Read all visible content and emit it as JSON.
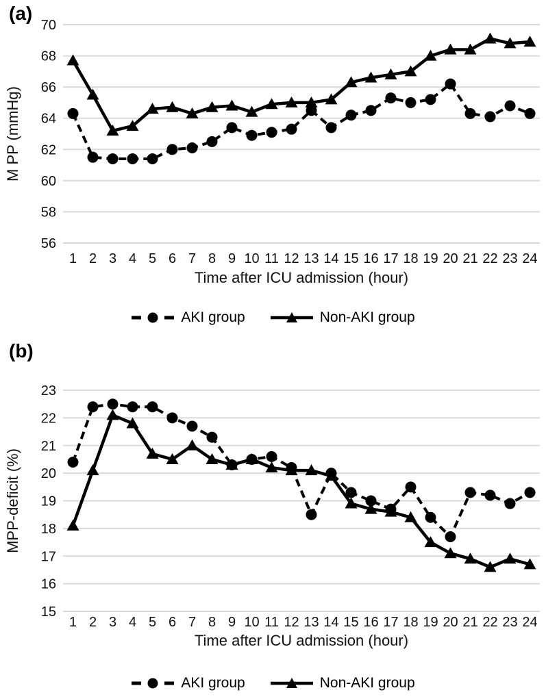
{
  "figure": {
    "panel_a": {
      "label": "(a)"
    },
    "panel_b": {
      "label": "(b)"
    },
    "legend": {
      "aki": "AKI group",
      "non_aki": "Non-AKI group"
    },
    "colors": {
      "series": "#000000",
      "gridline": "#dadada",
      "text": "#111111"
    }
  },
  "chart_data": [
    {
      "type": "line",
      "panel": "a",
      "title": "",
      "xlabel": "Time after ICU admission (hour)",
      "ylabel": "M PP (mmHg)",
      "ylim": [
        56,
        70
      ],
      "yticks": [
        70,
        68,
        66,
        64,
        62,
        60,
        58,
        56
      ],
      "grid": "horizontal",
      "legend_position": "bottom",
      "x": [
        1,
        2,
        3,
        4,
        5,
        6,
        7,
        8,
        9,
        10,
        11,
        12,
        13,
        14,
        15,
        16,
        17,
        18,
        19,
        20,
        21,
        22,
        23,
        24
      ],
      "series": [
        {
          "name": "AKI group",
          "marker": "circle",
          "line_style": "dashed",
          "values": [
            64.3,
            61.5,
            61.4,
            61.4,
            61.4,
            62.0,
            62.1,
            62.5,
            63.4,
            62.9,
            63.1,
            63.3,
            64.5,
            63.4,
            64.2,
            64.5,
            65.3,
            65.0,
            65.2,
            66.2,
            64.3,
            64.1,
            64.8,
            64.3
          ]
        },
        {
          "name": "Non-AKI group",
          "marker": "triangle",
          "line_style": "solid",
          "values": [
            67.7,
            65.5,
            63.2,
            63.5,
            64.6,
            64.7,
            64.3,
            64.7,
            64.8,
            64.4,
            64.9,
            65.0,
            65.0,
            65.2,
            66.3,
            66.6,
            66.8,
            67.0,
            68.0,
            68.4,
            68.4,
            69.1,
            68.8,
            68.9
          ]
        }
      ]
    },
    {
      "type": "line",
      "panel": "b",
      "title": "",
      "xlabel": "Time after ICU admission (hour)",
      "ylabel": "MPP-deficit (%)",
      "ylim": [
        15,
        23
      ],
      "yticks": [
        23,
        22,
        21,
        20,
        19,
        18,
        17,
        16,
        15
      ],
      "grid": "horizontal",
      "legend_position": "bottom",
      "x": [
        1,
        2,
        3,
        4,
        5,
        6,
        7,
        8,
        9,
        10,
        11,
        12,
        13,
        14,
        15,
        16,
        17,
        18,
        19,
        20,
        21,
        22,
        23,
        24
      ],
      "series": [
        {
          "name": "AKI group",
          "marker": "circle",
          "line_style": "dashed",
          "values": [
            20.4,
            22.4,
            22.5,
            22.4,
            22.4,
            22.0,
            21.7,
            21.3,
            20.3,
            20.5,
            20.6,
            20.2,
            18.5,
            20.0,
            19.3,
            19.0,
            18.7,
            19.5,
            18.4,
            17.7,
            19.3,
            19.2,
            18.9,
            19.3
          ]
        },
        {
          "name": "Non-AKI group",
          "marker": "triangle",
          "line_style": "solid",
          "values": [
            18.1,
            20.1,
            22.1,
            21.8,
            20.7,
            20.5,
            21.0,
            20.5,
            20.3,
            20.5,
            20.2,
            20.1,
            20.1,
            19.9,
            18.9,
            18.7,
            18.6,
            18.4,
            17.5,
            17.1,
            16.9,
            16.6,
            16.9,
            16.7
          ]
        }
      ]
    }
  ]
}
